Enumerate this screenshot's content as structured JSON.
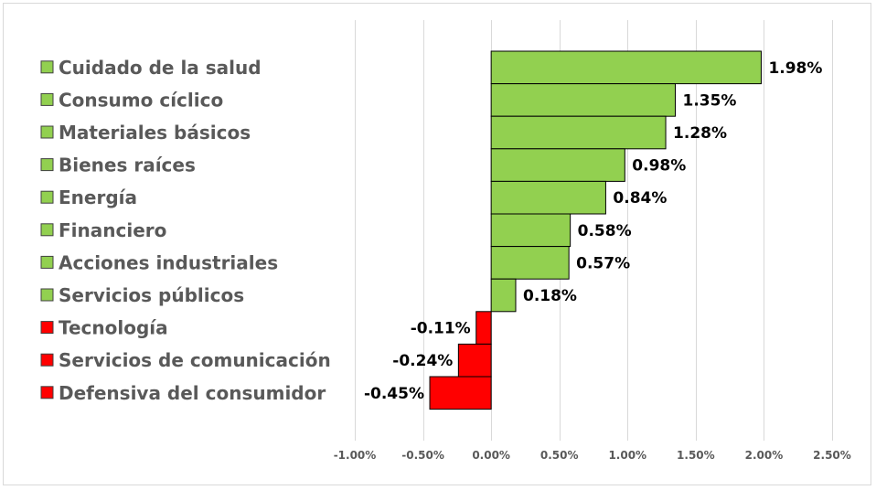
{
  "chart_data": {
    "type": "bar",
    "orientation": "horizontal",
    "title": "",
    "xlabel": "",
    "ylabel": "",
    "xlim": [
      -1.0,
      2.5
    ],
    "ticks": [
      "-1.00%",
      "-0.50%",
      "0.00%",
      "0.50%",
      "1.00%",
      "1.50%",
      "2.00%",
      "2.50%"
    ],
    "tick_values": [
      -1.0,
      -0.5,
      0.0,
      0.5,
      1.0,
      1.5,
      2.0,
      2.5
    ],
    "grid": "vertical",
    "legend": "left",
    "categories": [
      "Cuidado de la salud",
      "Consumo cíclico",
      "Materiales básicos",
      "Bienes raíces",
      "Energía",
      "Financiero",
      "Acciones industriales",
      "Servicios públicos",
      "Tecnología",
      "Servicios de comunicación",
      "Defensiva del consumidor"
    ],
    "values": [
      1.98,
      1.35,
      1.28,
      0.98,
      0.84,
      0.58,
      0.57,
      0.18,
      -0.11,
      -0.24,
      -0.45
    ],
    "value_labels": [
      "1.98%",
      "1.35%",
      "1.28%",
      "0.98%",
      "0.84%",
      "0.58%",
      "0.57%",
      "0.18%",
      "-0.11%",
      "-0.24%",
      "-0.45%"
    ],
    "colors": {
      "positive": "#92d050",
      "negative": "#ff0000",
      "gridline": "#d9d9d9",
      "bar_border": "#000000"
    }
  }
}
